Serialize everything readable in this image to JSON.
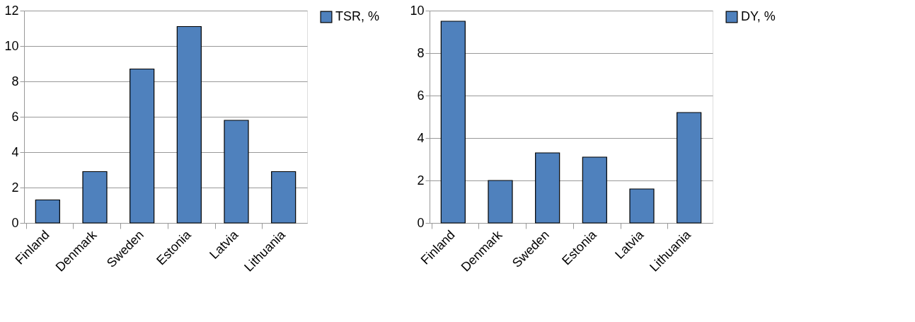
{
  "chart_data": [
    {
      "type": "bar",
      "categories": [
        "Finland",
        "Denmark",
        "Sweden",
        "Estonia",
        "Latvia",
        "Lithuania"
      ],
      "series": [
        {
          "name": "TSR, %",
          "color": "#4f81bd",
          "values": [
            1.3,
            2.9,
            8.7,
            11.1,
            5.8,
            2.9
          ]
        }
      ],
      "ylim": [
        0,
        12
      ],
      "yticks": [
        0,
        2,
        4,
        6,
        8,
        10,
        12
      ],
      "grid": "y",
      "legend": "right"
    },
    {
      "type": "bar",
      "categories": [
        "Finland",
        "Denmark",
        "Sweden",
        "Estonia",
        "Latvia",
        "Lithuania"
      ],
      "series": [
        {
          "name": "DY, %",
          "color": "#4f81bd",
          "values": [
            9.5,
            2.0,
            3.3,
            3.1,
            1.6,
            5.2
          ]
        }
      ],
      "ylim": [
        0,
        10
      ],
      "yticks": [
        0,
        2,
        4,
        6,
        8,
        10
      ],
      "grid": "y",
      "legend": "right"
    }
  ]
}
